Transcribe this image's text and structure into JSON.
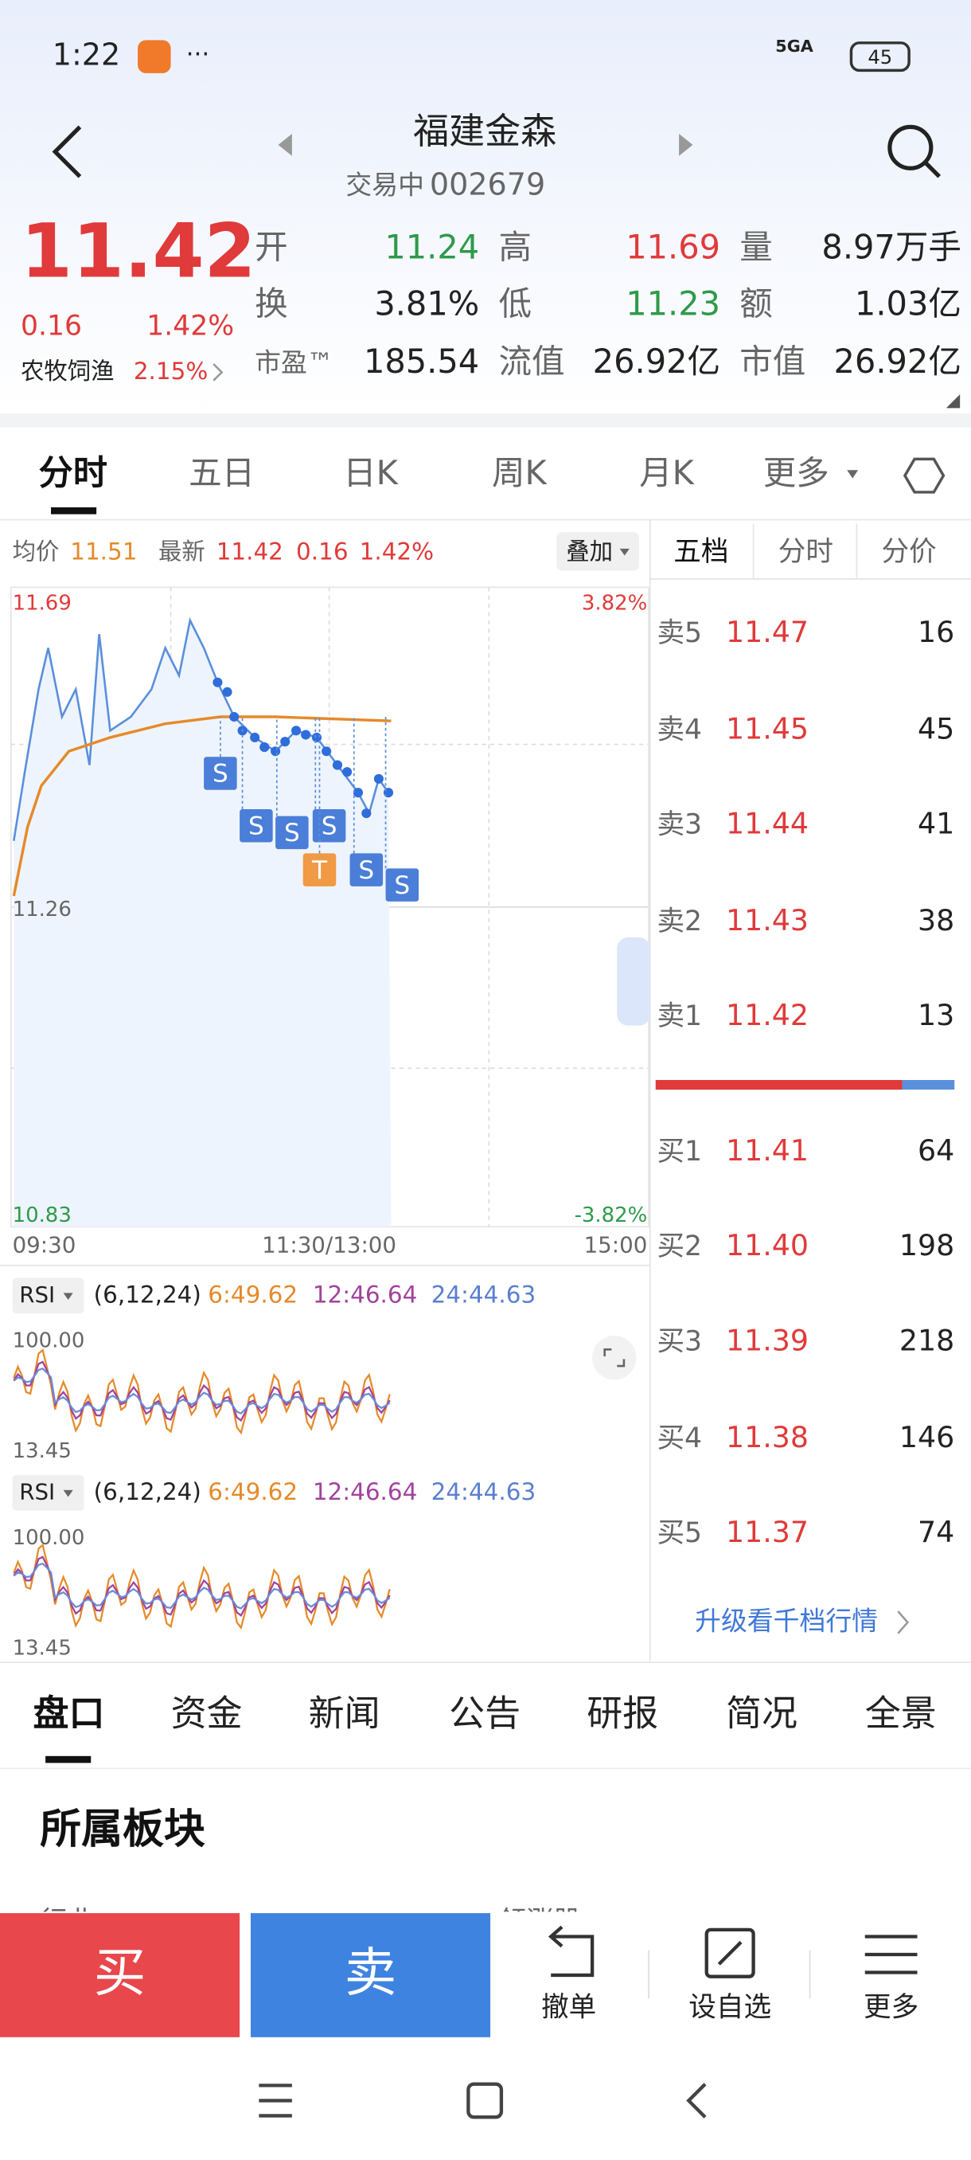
{
  "status": {
    "time": "1:22",
    "network": "5GA",
    "battery": "45"
  },
  "header": {
    "name": "福建金森",
    "state": "交易中",
    "code": "002679"
  },
  "quote": {
    "price": "11.42",
    "change": "0.16",
    "pct": "1.42%",
    "sector": "农牧饲渔",
    "sector_pct": "2.15%",
    "fields": [
      {
        "label": "开",
        "value": "11.24"
      },
      {
        "label": "高",
        "value": "11.69"
      },
      {
        "label": "量",
        "value": "8.97万手"
      },
      {
        "label": "换",
        "value": "3.81%"
      },
      {
        "label": "低",
        "value": "11.23"
      },
      {
        "label": "额",
        "value": "1.03亿"
      },
      {
        "label": "市盈™",
        "value": "185.54"
      },
      {
        "label": "流值",
        "value": "26.92亿"
      },
      {
        "label": "市值",
        "value": "26.92亿"
      }
    ]
  },
  "tabs": [
    "分时",
    "五日",
    "日K",
    "周K",
    "月K",
    "更多"
  ],
  "chart": {
    "avg_label": "均价",
    "avg": "11.51",
    "latest_label": "最新",
    "latest": "11.42",
    "change": "0.16",
    "pct": "1.42%",
    "overlay": "叠加",
    "y_top": "11.69",
    "y_mid": "11.26",
    "y_bottom": "10.83",
    "pct_top": "3.82%",
    "pct_bottom": "-3.82%",
    "x_labels": [
      "09:30",
      "11:30/13:00",
      "15:00"
    ],
    "markers": [
      "S",
      "S",
      "S",
      "S",
      "T",
      "S",
      "S"
    ]
  },
  "rsi": [
    {
      "label": "RSI",
      "params": "(6,12,24)",
      "r6": "6:49.62",
      "r12": "12:46.64",
      "r24": "24:44.63",
      "top": "100.00",
      "bottom": "13.45"
    },
    {
      "label": "RSI",
      "params": "(6,12,24)",
      "r6": "6:49.62",
      "r12": "12:46.64",
      "r24": "24:44.63",
      "top": "100.00",
      "bottom": "13.45"
    }
  ],
  "book": {
    "tabs": [
      "五档",
      "分时",
      "分价"
    ],
    "asks": [
      {
        "label": "卖5",
        "price": "11.47",
        "volume": "16"
      },
      {
        "label": "卖4",
        "price": "11.45",
        "volume": "45"
      },
      {
        "label": "卖3",
        "price": "11.44",
        "volume": "41"
      },
      {
        "label": "卖2",
        "price": "11.43",
        "volume": "38"
      },
      {
        "label": "卖1",
        "price": "11.42",
        "volume": "13"
      }
    ],
    "bids": [
      {
        "label": "买1",
        "price": "11.41",
        "volume": "64"
      },
      {
        "label": "买2",
        "price": "11.40",
        "volume": "198"
      },
      {
        "label": "买3",
        "price": "11.39",
        "volume": "218"
      },
      {
        "label": "买4",
        "price": "11.38",
        "volume": "146"
      },
      {
        "label": "买5",
        "price": "11.37",
        "volume": "74"
      }
    ],
    "upgrade": "升级看千档行情"
  },
  "detail_tabs": [
    "盘口",
    "资金",
    "新闻",
    "公告",
    "研报",
    "简况",
    "全景"
  ],
  "section": {
    "title": "所属板块",
    "col1": "行业",
    "col2": "领涨股"
  },
  "actions": {
    "buy": "买",
    "sell": "卖",
    "items": [
      "撤单",
      "设自选",
      "更多"
    ]
  }
}
